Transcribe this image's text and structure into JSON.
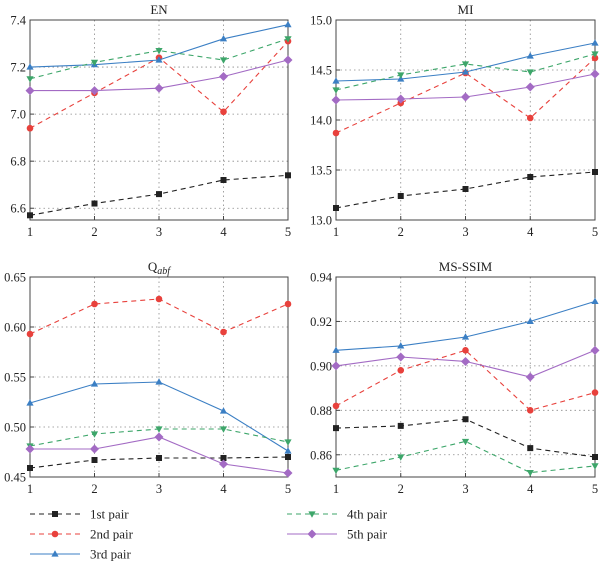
{
  "colors": {
    "1st pair": "#222222",
    "2nd pair": "#e8413c",
    "3rd pair": "#3b7fc4",
    "4th pair": "#3da66a",
    "5th pair": "#a36bc4"
  },
  "legend": [
    "1st pair",
    "2nd pair",
    "3rd pair",
    "4th pair",
    "5th pair"
  ],
  "chart_data": [
    {
      "type": "line",
      "title": "EN",
      "x": [
        1,
        2,
        3,
        4,
        5
      ],
      "ylim": [
        6.55,
        7.4
      ],
      "yticks": [
        6.6,
        6.8,
        7.0,
        7.2,
        7.4
      ],
      "ytick_labels": [
        "6.6",
        "6.8",
        "7.0",
        "7.2",
        "7.4"
      ],
      "series": [
        {
          "name": "1st pair",
          "values": [
            6.57,
            6.62,
            6.66,
            6.72,
            6.74
          ]
        },
        {
          "name": "2nd pair",
          "values": [
            6.94,
            7.09,
            7.24,
            7.01,
            7.31
          ]
        },
        {
          "name": "3rd pair",
          "values": [
            7.2,
            7.21,
            7.23,
            7.32,
            7.38
          ]
        },
        {
          "name": "4th pair",
          "values": [
            7.15,
            7.22,
            7.27,
            7.23,
            7.32
          ]
        },
        {
          "name": "5th pair",
          "values": [
            7.1,
            7.1,
            7.11,
            7.16,
            7.23
          ]
        }
      ]
    },
    {
      "type": "line",
      "title": "MI",
      "x": [
        1,
        2,
        3,
        4,
        5
      ],
      "ylim": [
        13.0,
        15.0
      ],
      "yticks": [
        13.0,
        13.5,
        14.0,
        14.5,
        15.0
      ],
      "ytick_labels": [
        "13.0",
        "13.5",
        "14.0",
        "14.5",
        "15.0"
      ],
      "series": [
        {
          "name": "1st pair",
          "values": [
            13.12,
            13.24,
            13.31,
            13.43,
            13.48
          ]
        },
        {
          "name": "2nd pair",
          "values": [
            13.87,
            14.17,
            14.47,
            14.02,
            14.62
          ]
        },
        {
          "name": "3rd pair",
          "values": [
            14.39,
            14.41,
            14.48,
            14.64,
            14.77
          ]
        },
        {
          "name": "4th pair",
          "values": [
            14.3,
            14.45,
            14.56,
            14.48,
            14.66
          ]
        },
        {
          "name": "5th pair",
          "values": [
            14.2,
            14.21,
            14.23,
            14.33,
            14.46
          ]
        }
      ]
    },
    {
      "type": "line",
      "title": "Q",
      "title_sub": "abf",
      "x": [
        1,
        2,
        3,
        4,
        5
      ],
      "ylim": [
        0.45,
        0.65
      ],
      "yticks": [
        0.45,
        0.5,
        0.55,
        0.6,
        0.65
      ],
      "ytick_labels": [
        "0.45",
        "0.50",
        "0.55",
        "0.60",
        "0.65"
      ],
      "series": [
        {
          "name": "1st pair",
          "values": [
            0.459,
            0.467,
            0.469,
            0.469,
            0.47
          ]
        },
        {
          "name": "2nd pair",
          "values": [
            0.593,
            0.623,
            0.628,
            0.595,
            0.623
          ]
        },
        {
          "name": "3rd pair",
          "values": [
            0.524,
            0.543,
            0.545,
            0.516,
            0.476
          ]
        },
        {
          "name": "4th pair",
          "values": [
            0.481,
            0.493,
            0.498,
            0.498,
            0.485
          ]
        },
        {
          "name": "5th pair",
          "values": [
            0.478,
            0.478,
            0.49,
            0.463,
            0.454
          ]
        }
      ]
    },
    {
      "type": "line",
      "title": "MS-SSIM",
      "x": [
        1,
        2,
        3,
        4,
        5
      ],
      "ylim": [
        0.85,
        0.94
      ],
      "yticks": [
        0.86,
        0.88,
        0.9,
        0.92,
        0.94
      ],
      "ytick_labels": [
        "0.86",
        "0.88",
        "0.90",
        "0.92",
        "0.94"
      ],
      "series": [
        {
          "name": "1st pair",
          "values": [
            0.872,
            0.873,
            0.876,
            0.863,
            0.859
          ]
        },
        {
          "name": "2nd pair",
          "values": [
            0.882,
            0.898,
            0.907,
            0.88,
            0.888
          ]
        },
        {
          "name": "3rd pair",
          "values": [
            0.907,
            0.909,
            0.913,
            0.92,
            0.929
          ]
        },
        {
          "name": "4th pair",
          "values": [
            0.853,
            0.859,
            0.866,
            0.852,
            0.855
          ]
        },
        {
          "name": "5th pair",
          "values": [
            0.9,
            0.904,
            0.902,
            0.895,
            0.907
          ]
        }
      ]
    }
  ]
}
